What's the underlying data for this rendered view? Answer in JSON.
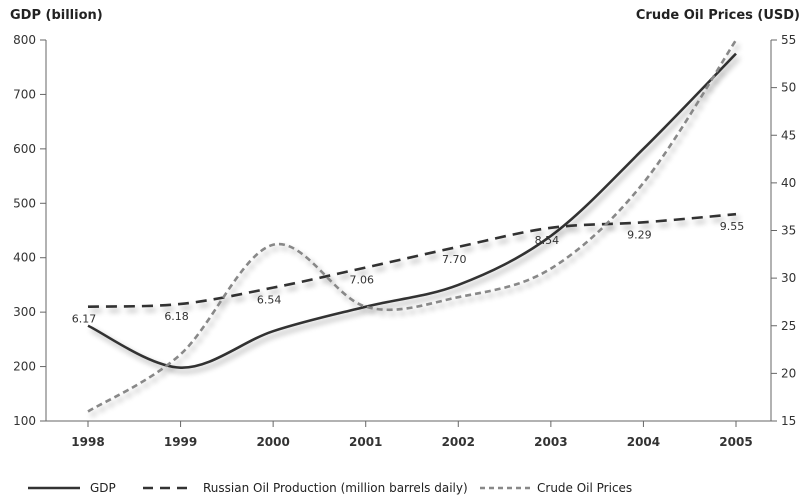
{
  "chart_data": {
    "type": "line",
    "title": "",
    "x": [
      1998,
      1999,
      2000,
      2001,
      2002,
      2003,
      2004,
      2005
    ],
    "categories": [
      "1998",
      "1999",
      "2000",
      "2001",
      "2002",
      "2003",
      "2004",
      "2005"
    ],
    "left_axis": {
      "label": "GDP (billion)",
      "ylim": [
        100,
        800
      ],
      "ticks": [
        "100",
        "200",
        "300",
        "400",
        "500",
        "600",
        "700",
        "800"
      ]
    },
    "right_axis": {
      "label": "Crude Oil Prices (USD)",
      "ylim": [
        15,
        55
      ],
      "ticks": [
        "15",
        "20",
        "25",
        "30",
        "35",
        "40",
        "45",
        "50",
        "55"
      ]
    },
    "grid": false,
    "legend_position": "bottom",
    "series": [
      {
        "name": "GDP",
        "axis": "left",
        "style": "solid",
        "color": "#333333",
        "values": [
          275,
          198,
          265,
          310,
          350,
          440,
          600,
          775
        ]
      },
      {
        "name": "Russian Oil Production (million barrels daily)",
        "axis": "left",
        "style": "dashed",
        "color": "#333333",
        "values": [
          310,
          315,
          345,
          382,
          420,
          455,
          465,
          480
        ],
        "data_labels": [
          "6.17",
          "6.18",
          "6.54",
          "7.06",
          "7.70",
          "8.54",
          "9.29",
          "9.55"
        ]
      },
      {
        "name": "Crude Oil Prices",
        "axis": "right",
        "style": "dashed",
        "color": "#888888",
        "values": [
          16,
          22,
          33.5,
          27,
          28,
          31,
          40,
          55
        ]
      }
    ]
  }
}
